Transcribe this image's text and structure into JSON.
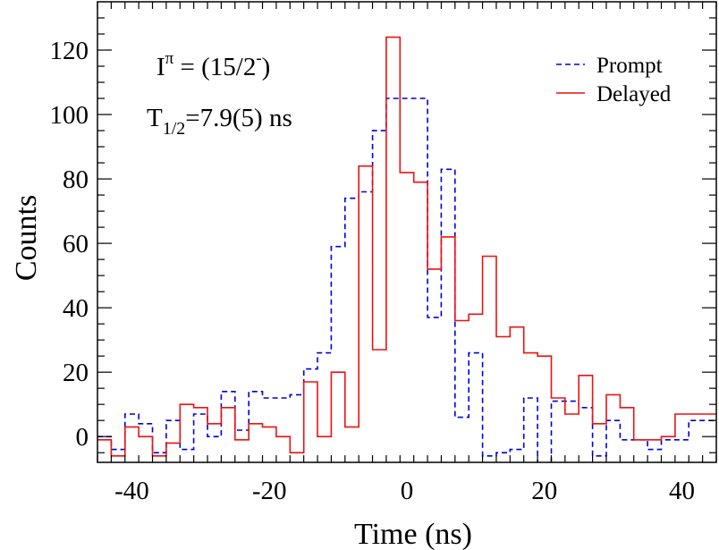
{
  "chart_data": {
    "type": "line",
    "step": true,
    "xlabel": "Time (ns)",
    "ylabel": "Counts",
    "xlim": [
      -45,
      45
    ],
    "ylim": [
      -8,
      135
    ],
    "xticks": [
      -40,
      -20,
      0,
      20,
      40
    ],
    "xtick_labels": [
      "-40",
      "-20",
      "0",
      "20",
      "40"
    ],
    "yticks": [
      0,
      20,
      40,
      60,
      80,
      100,
      120
    ],
    "ytick_labels": [
      "0",
      "20",
      "40",
      "60",
      "80",
      "100",
      "120"
    ],
    "grid": false,
    "legend_position": "top-right",
    "annotations": {
      "spin_main": "I",
      "spin_sup": "π",
      "spin_rest": " = (15/2",
      "spin_minus": "-",
      "spin_close": ")",
      "halflife_main": "T",
      "halflife_sub": "1/2",
      "halflife_rest": "=7.9(5) ns"
    },
    "series": [
      {
        "name": "Prompt",
        "color": "#0000dd",
        "dash": "dashed",
        "x": [
          -45,
          -43,
          -41,
          -39,
          -37,
          -35,
          -33,
          -31,
          -29,
          -27,
          -25,
          -23,
          -21,
          -19,
          -17,
          -15,
          -13,
          -11,
          -9,
          -7,
          -5,
          -3,
          -1,
          1,
          3,
          5,
          7,
          9,
          11,
          13,
          15,
          17,
          19,
          21,
          23,
          25,
          27,
          29,
          31,
          33,
          35,
          37,
          39,
          41,
          43
        ],
        "values": [
          0,
          -4,
          7,
          4,
          -5,
          5,
          -4,
          7,
          0,
          14,
          2,
          14,
          12,
          12,
          13,
          21,
          26,
          59,
          74,
          76,
          95,
          105,
          105,
          105,
          37,
          83,
          6,
          26,
          -6,
          -5,
          -4,
          12,
          -11,
          11,
          11,
          9,
          -6,
          5,
          -1,
          -1,
          -4,
          -1,
          -1,
          5,
          5
        ]
      },
      {
        "name": "Delayed",
        "color": "#ee1111",
        "dash": "solid",
        "x": [
          -45,
          -43,
          -41,
          -39,
          -37,
          -35,
          -33,
          -31,
          -29,
          -27,
          -25,
          -23,
          -21,
          -19,
          -17,
          -15,
          -13,
          -11,
          -9,
          -7,
          -5,
          -3,
          -1,
          1,
          3,
          5,
          7,
          9,
          11,
          13,
          15,
          17,
          19,
          21,
          23,
          25,
          27,
          29,
          31,
          33,
          35,
          37,
          39,
          41,
          43
        ],
        "values": [
          -1,
          -6,
          3,
          0,
          -6,
          -2,
          10,
          9,
          4,
          9,
          -1,
          4,
          3,
          0,
          -5,
          17,
          0,
          20,
          3,
          84,
          27,
          124,
          82,
          79,
          52,
          62,
          36,
          38,
          56,
          31,
          34,
          26,
          25,
          12,
          7,
          19,
          4,
          13,
          9,
          -1,
          -1,
          0,
          7,
          7,
          7
        ]
      }
    ]
  }
}
